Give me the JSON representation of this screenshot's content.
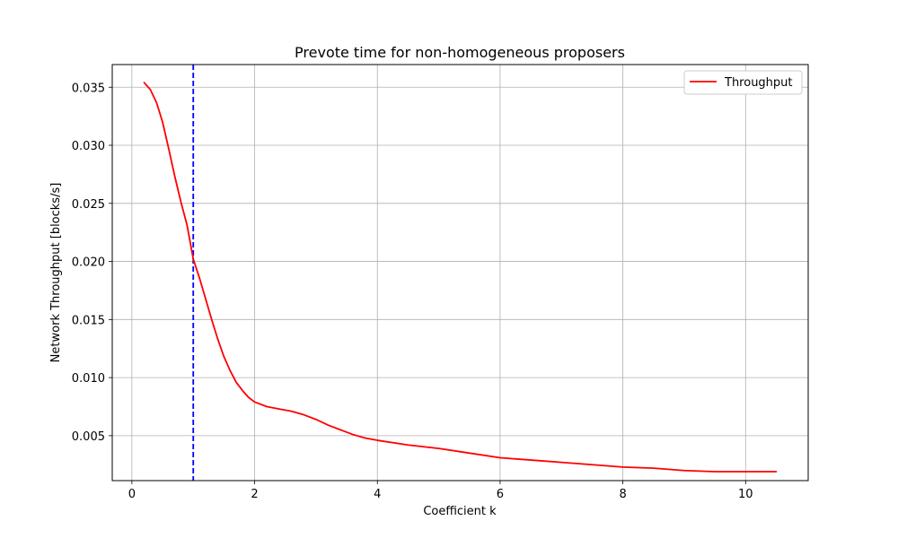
{
  "chart_data": {
    "type": "line",
    "title": "Prevote time for non-homogeneous proposers",
    "xlabel": "Coefficient k",
    "ylabel": "Network Throughput [blocks/s]",
    "xlim": [
      -0.32,
      11.02
    ],
    "ylim": [
      0.00113,
      0.03695
    ],
    "x_ticks": [
      0,
      2,
      4,
      6,
      8,
      10
    ],
    "x_tick_labels": [
      "0",
      "2",
      "4",
      "6",
      "8",
      "10"
    ],
    "y_ticks": [
      0.005,
      0.01,
      0.015,
      0.02,
      0.025,
      0.03,
      0.035
    ],
    "y_tick_labels": [
      "0.005",
      "0.010",
      "0.015",
      "0.020",
      "0.025",
      "0.030",
      "0.035"
    ],
    "grid": true,
    "legend_position": "top-right",
    "series": [
      {
        "name": "Throughput",
        "color": "#ff0000",
        "points": [
          [
            0.2,
            0.0354
          ],
          [
            0.3,
            0.0348
          ],
          [
            0.4,
            0.0337
          ],
          [
            0.5,
            0.032
          ],
          [
            0.6,
            0.0297
          ],
          [
            0.7,
            0.0273
          ],
          [
            0.8,
            0.0251
          ],
          [
            0.9,
            0.0231
          ],
          [
            1.0,
            0.0202
          ],
          [
            1.1,
            0.0186
          ],
          [
            1.2,
            0.0168
          ],
          [
            1.3,
            0.015
          ],
          [
            1.4,
            0.0133
          ],
          [
            1.5,
            0.0118
          ],
          [
            1.6,
            0.0106
          ],
          [
            1.7,
            0.0096
          ],
          [
            1.8,
            0.0089
          ],
          [
            1.9,
            0.0083
          ],
          [
            2.0,
            0.0079
          ],
          [
            2.2,
            0.0075
          ],
          [
            2.4,
            0.0073
          ],
          [
            2.6,
            0.0071
          ],
          [
            2.8,
            0.0068
          ],
          [
            3.0,
            0.0064
          ],
          [
            3.2,
            0.0059
          ],
          [
            3.4,
            0.0055
          ],
          [
            3.6,
            0.0051
          ],
          [
            3.8,
            0.0048
          ],
          [
            4.0,
            0.0046
          ],
          [
            4.5,
            0.0042
          ],
          [
            5.0,
            0.0039
          ],
          [
            5.5,
            0.0035
          ],
          [
            6.0,
            0.0031
          ],
          [
            6.5,
            0.0029
          ],
          [
            7.0,
            0.0027
          ],
          [
            7.5,
            0.0025
          ],
          [
            8.0,
            0.0023
          ],
          [
            8.5,
            0.0022
          ],
          [
            9.0,
            0.002
          ],
          [
            9.5,
            0.0019
          ],
          [
            10.0,
            0.0019
          ],
          [
            10.5,
            0.0019
          ]
        ]
      }
    ],
    "reference_lines": [
      {
        "orientation": "vertical",
        "x": 1.0,
        "color": "#0000ff",
        "style": "dashed"
      }
    ]
  }
}
